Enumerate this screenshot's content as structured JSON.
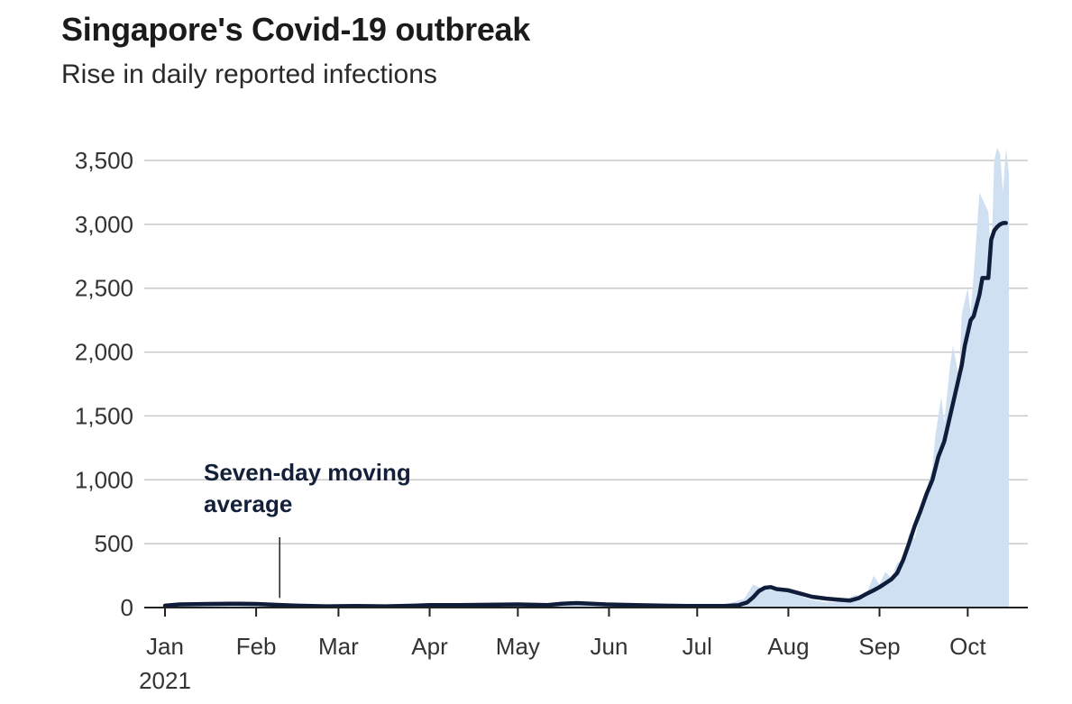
{
  "chart_data": {
    "type": "area",
    "title": "Singapore's Covid-19 outbreak",
    "subtitle": "Rise in daily reported infections",
    "xlabel": "",
    "ylabel": "",
    "ylim": [
      0,
      3500
    ],
    "y_ticks": [
      0,
      500,
      1000,
      1500,
      2000,
      2500,
      3000,
      3500
    ],
    "y_tick_labels": [
      "0",
      "500",
      "1,000",
      "1,500",
      "2,000",
      "2,500",
      "3,000",
      "3,500"
    ],
    "x_ticks": [
      {
        "label": "Jan",
        "day": 0
      },
      {
        "label": "Feb",
        "day": 31
      },
      {
        "label": "Mar",
        "day": 59
      },
      {
        "label": "Apr",
        "day": 90
      },
      {
        "label": "May",
        "day": 120
      },
      {
        "label": "Jun",
        "day": 151
      },
      {
        "label": "Jul",
        "day": 181
      },
      {
        "label": "Aug",
        "day": 212
      },
      {
        "label": "Sep",
        "day": 243
      },
      {
        "label": "Oct",
        "day": 273
      }
    ],
    "x_year_label": "2021",
    "xlim_days": [
      0,
      287
    ],
    "annotation": {
      "line1": "Seven-day moving",
      "line2": "average",
      "target_day": 39,
      "target_value": 75
    },
    "series": [
      {
        "name": "Daily reported infections",
        "type": "area",
        "color": "#cfe0f2",
        "day": [
          0,
          10,
          20,
          31,
          40,
          45,
          59,
          75,
          90,
          105,
          120,
          130,
          140,
          151,
          165,
          181,
          190,
          197,
          200,
          203,
          206,
          209,
          212,
          216,
          220,
          225,
          230,
          235,
          238,
          241,
          243,
          245,
          247,
          249,
          251,
          253,
          255,
          257,
          259,
          261,
          262,
          264,
          265,
          267,
          268,
          270,
          271,
          273,
          274,
          275,
          277,
          278,
          280,
          281,
          282,
          283,
          284,
          285,
          286,
          287
        ],
        "values": [
          20,
          28,
          30,
          32,
          25,
          12,
          10,
          12,
          22,
          20,
          28,
          25,
          35,
          18,
          15,
          12,
          20,
          70,
          180,
          150,
          140,
          125,
          120,
          90,
          60,
          40,
          50,
          100,
          80,
          250,
          180,
          280,
          230,
          350,
          360,
          580,
          540,
          750,
          920,
          1100,
          1350,
          1650,
          1450,
          1900,
          2050,
          1800,
          2300,
          2500,
          2300,
          2600,
          3250,
          3200,
          3100,
          2700,
          3500,
          3600,
          3550,
          3250,
          3600,
          3400
        ]
      },
      {
        "name": "Seven-day moving average",
        "type": "line",
        "color": "#0f1d3a",
        "day": [
          0,
          5,
          15,
          25,
          31,
          40,
          45,
          55,
          65,
          75,
          85,
          90,
          100,
          110,
          120,
          130,
          135,
          140,
          150,
          160,
          170,
          180,
          190,
          195,
          198,
          200,
          202,
          204,
          206,
          208,
          212,
          216,
          220,
          225,
          230,
          233,
          236,
          238,
          241,
          243,
          245,
          247,
          249,
          251,
          253,
          255,
          257,
          259,
          261,
          263,
          265,
          267,
          269,
          271,
          272,
          274,
          275,
          277,
          278,
          280,
          281,
          282,
          283,
          284,
          285,
          286
        ],
        "values": [
          15,
          25,
          28,
          30,
          28,
          20,
          15,
          10,
          12,
          10,
          15,
          20,
          20,
          22,
          25,
          20,
          30,
          35,
          25,
          20,
          15,
          12,
          12,
          18,
          40,
          80,
          130,
          155,
          160,
          145,
          135,
          110,
          85,
          70,
          60,
          55,
          75,
          100,
          135,
          160,
          190,
          220,
          270,
          370,
          500,
          640,
          760,
          890,
          1000,
          1180,
          1300,
          1500,
          1700,
          1900,
          2050,
          2250,
          2280,
          2450,
          2580,
          2580,
          2880,
          2950,
          2980,
          3000,
          3010,
          3010
        ]
      }
    ]
  }
}
